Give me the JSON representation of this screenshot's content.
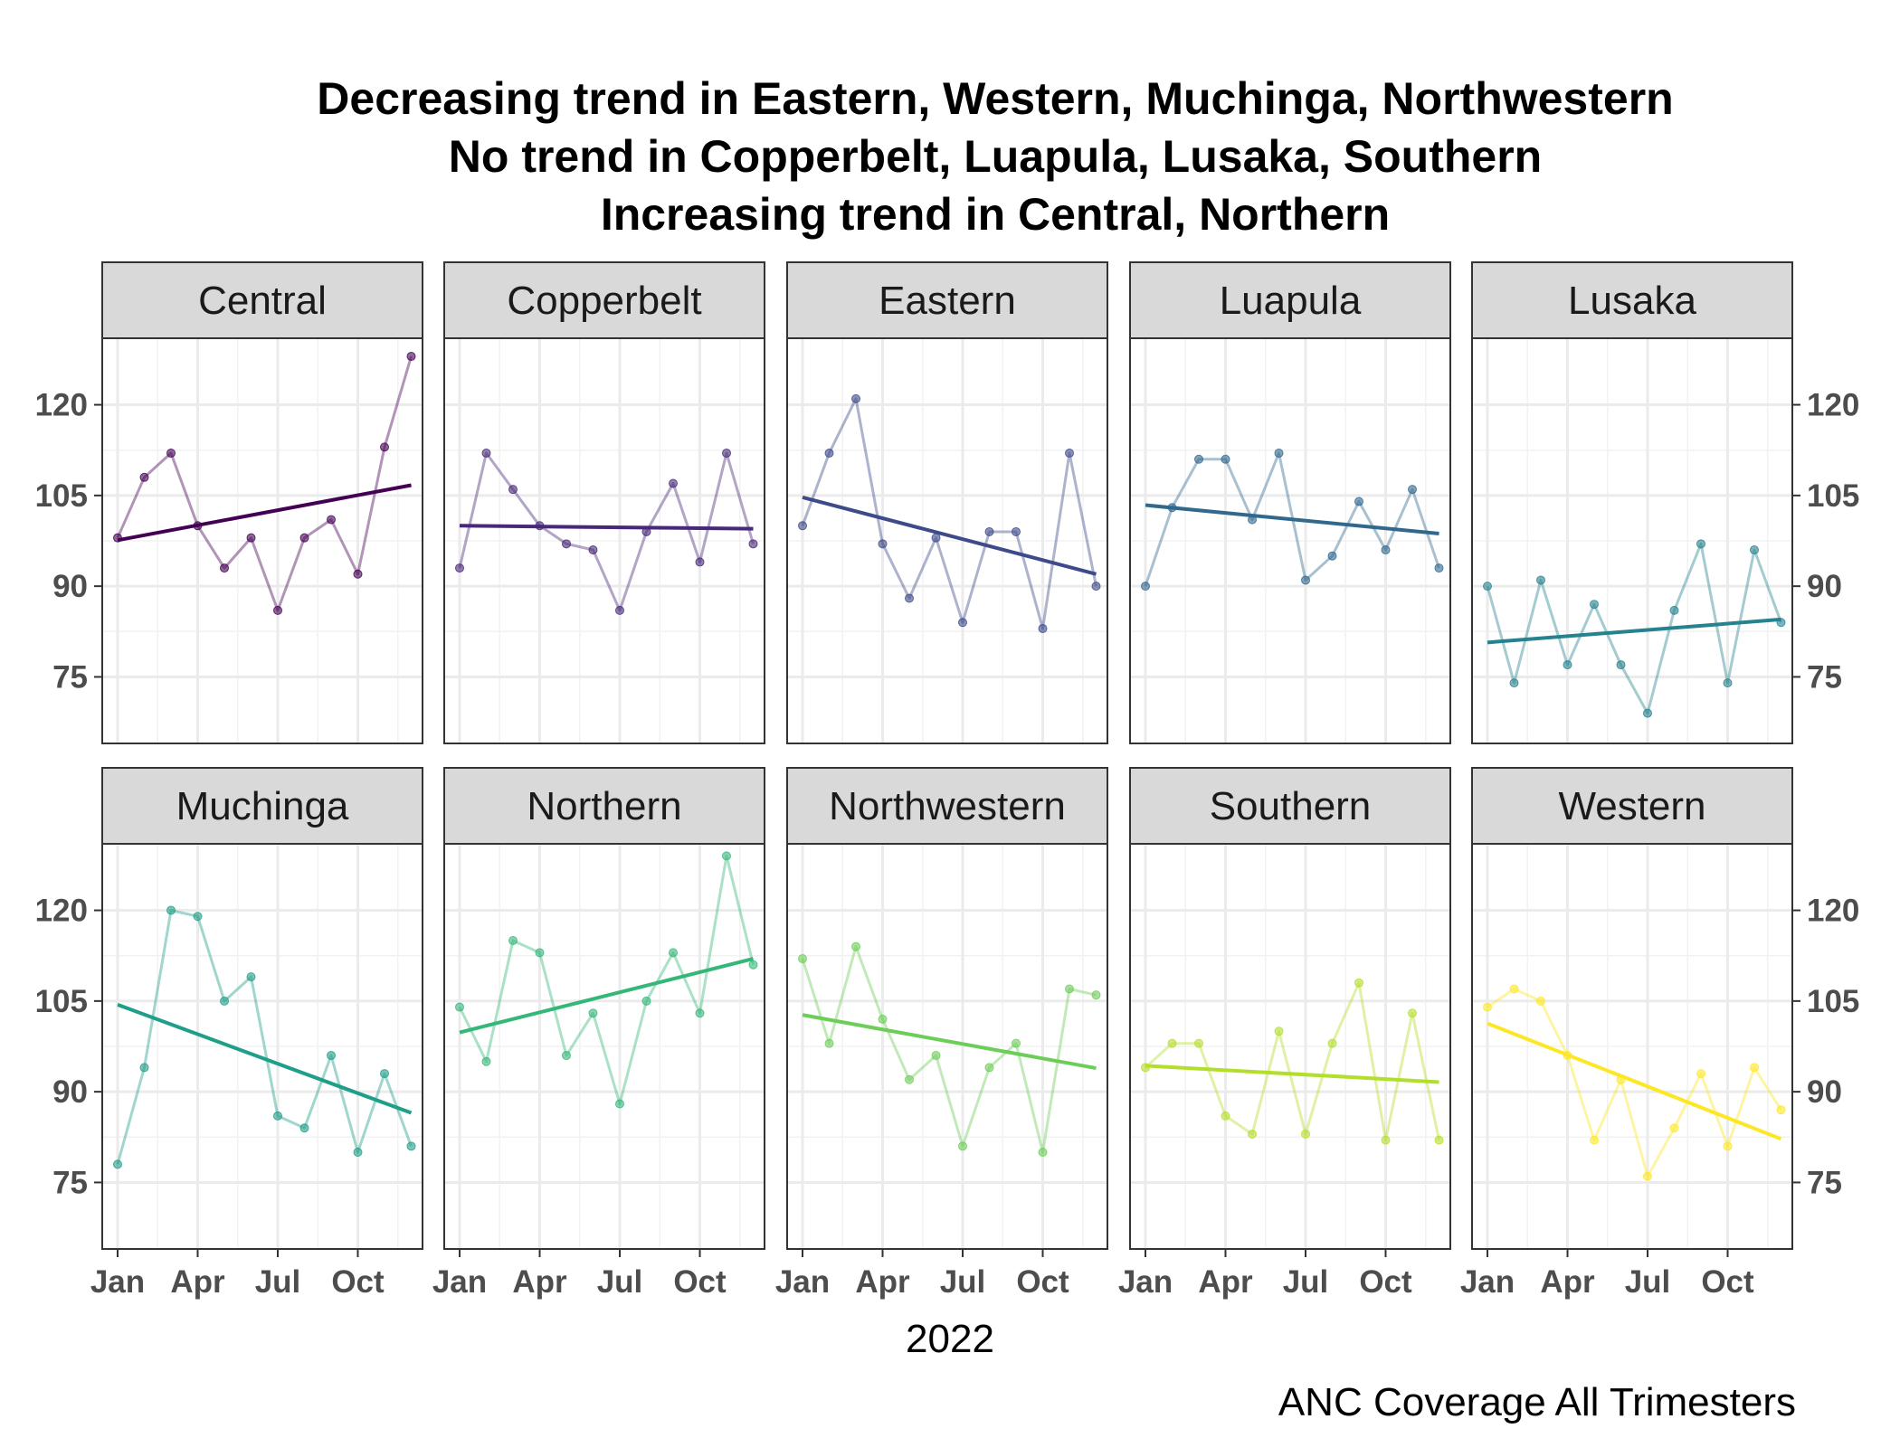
{
  "chart_data": {
    "type": "line",
    "title": "Decreasing trend in Eastern, Western, Muchinga, Northwestern\nNo trend in Copperbelt, Luapula, Lusaka, Southern\nIncreasing trend in Central, Northern",
    "title_lines": [
      "Decreasing trend in Eastern, Western, Muchinga, Northwestern",
      "No trend in Copperbelt, Luapula, Lusaka, Southern",
      "Increasing trend in Central, Northern"
    ],
    "xlabel": "2022",
    "ylabel": "",
    "caption": "ANC Coverage All Trimesters",
    "x": [
      "Jan",
      "Feb",
      "Mar",
      "Apr",
      "May",
      "Jun",
      "Jul",
      "Aug",
      "Sep",
      "Oct",
      "Nov",
      "Dec"
    ],
    "x_ticks": [
      "Jan",
      "Apr",
      "Jul",
      "Oct"
    ],
    "y_ticks": [
      75,
      90,
      105,
      120
    ],
    "ylim": [
      64,
      131
    ],
    "grid": true,
    "facets": {
      "rows": 2,
      "cols": 5
    },
    "series": [
      {
        "name": "Central",
        "color": "#440154",
        "values": [
          98,
          108,
          112,
          100,
          93,
          98,
          86,
          98,
          101,
          92,
          113,
          128
        ],
        "trend": [
          97.6,
          106.7
        ]
      },
      {
        "name": "Copperbelt",
        "color": "#482878",
        "values": [
          93,
          112,
          106,
          100,
          97,
          96,
          86,
          99,
          107,
          94,
          112,
          97
        ],
        "trend": [
          100.0,
          99.5
        ]
      },
      {
        "name": "Eastern",
        "color": "#3E4A89",
        "values": [
          100,
          112,
          121,
          97,
          88,
          98,
          84,
          99,
          99,
          83,
          112,
          90
        ],
        "trend": [
          104.7,
          92.0
        ]
      },
      {
        "name": "Luapula",
        "color": "#31688E",
        "values": [
          90,
          103,
          111,
          111,
          101,
          112,
          91,
          95,
          104,
          96,
          106,
          93
        ],
        "trend": [
          103.4,
          98.7
        ]
      },
      {
        "name": "Lusaka",
        "color": "#26828E",
        "values": [
          90,
          74,
          91,
          77,
          87,
          77,
          69,
          86,
          97,
          74,
          96,
          84
        ],
        "trend": [
          80.7,
          84.5
        ]
      },
      {
        "name": "Muchinga",
        "color": "#1F9E89",
        "values": [
          78,
          94,
          120,
          119,
          105,
          109,
          86,
          84,
          96,
          80,
          93,
          81
        ],
        "trend": [
          104.4,
          86.5
        ]
      },
      {
        "name": "Northern",
        "color": "#35B779",
        "values": [
          104,
          95,
          115,
          113,
          96,
          103,
          88,
          105,
          113,
          103,
          129,
          111
        ],
        "trend": [
          99.8,
          112.0
        ]
      },
      {
        "name": "Northwestern",
        "color": "#6DCD59",
        "values": [
          112,
          98,
          114,
          102,
          92,
          96,
          81,
          94,
          98,
          80,
          107,
          106
        ],
        "trend": [
          102.7,
          93.9
        ]
      },
      {
        "name": "Southern",
        "color": "#B4DE2C",
        "values": [
          94,
          98,
          98,
          86,
          83,
          100,
          83,
          98,
          108,
          82,
          103,
          82
        ],
        "trend": [
          94.3,
          91.6
        ]
      },
      {
        "name": "Western",
        "color": "#FDE725",
        "values": [
          104,
          107,
          105,
          96,
          82,
          92,
          76,
          84,
          93,
          81,
          94,
          87
        ],
        "trend": [
          101.3,
          82.2
        ]
      }
    ]
  }
}
